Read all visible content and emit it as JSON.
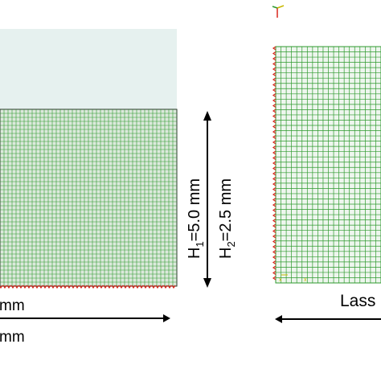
{
  "left_model": {
    "height_label_1_main": "H",
    "height_label_1_sub": "1",
    "height_label_1_value": "=5.0 mm",
    "height_label_2_main": "H",
    "height_label_2_sub": "2",
    "height_label_2_value": "=2.5 mm",
    "width_label_top": "mm",
    "width_label_bottom": "mm"
  },
  "right_model": {
    "bottom_label": "Lass"
  },
  "colors": {
    "mesh_line_green": "#2e9a2e",
    "mesh_line_dark": "#2a3a2a",
    "mesh_fill_upper": "#e6f1ef",
    "boundary_red": "#d9261c",
    "dimension_line": "#000000"
  }
}
